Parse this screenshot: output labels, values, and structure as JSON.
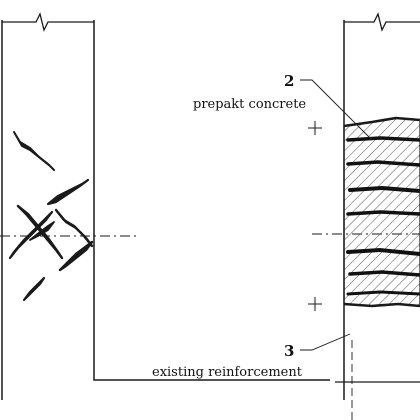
{
  "labels": {
    "label_2": {
      "number": "2",
      "text": "prepakt concrete"
    },
    "label_3": {
      "number": "3",
      "text": "existing reinforcement"
    }
  },
  "colors": {
    "ink": "#1a1a1a",
    "hatch": "#444444",
    "background": "#ffffff"
  }
}
